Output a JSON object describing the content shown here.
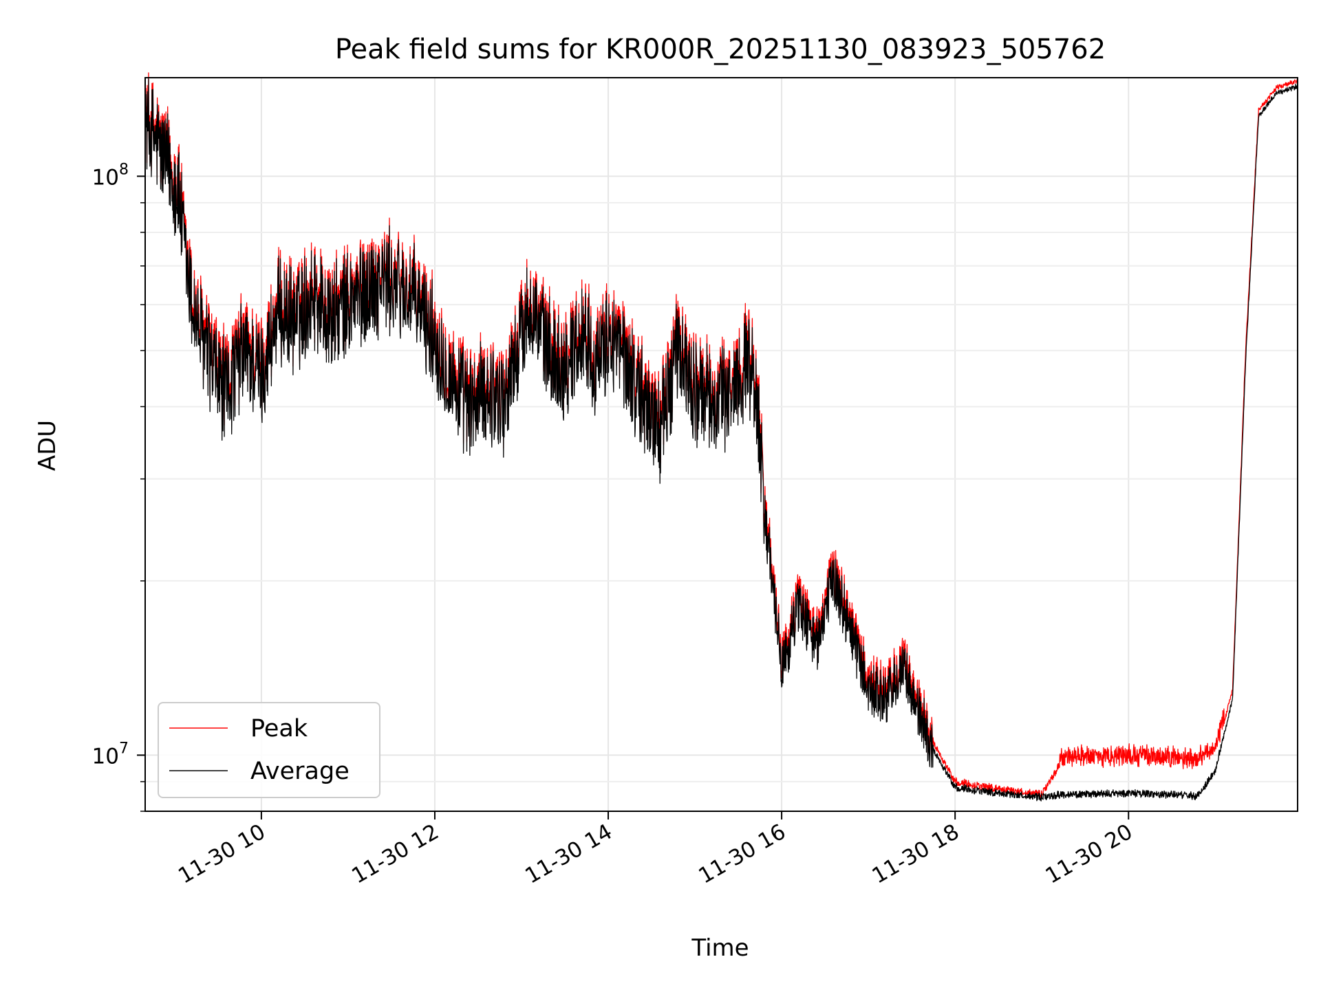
{
  "chart_data": {
    "type": "line",
    "title": "Peak field sums for KR000R_20251130_083923_505762",
    "xlabel": "Time",
    "ylabel": "ADU",
    "yscale": "log",
    "ylim": [
      8000000,
      148000000
    ],
    "xlim_hours": [
      8.66,
      21.95
    ],
    "grid": true,
    "x_ticks": [
      {
        "hour": 10,
        "label": "11-30 10"
      },
      {
        "hour": 12,
        "label": "11-30 12"
      },
      {
        "hour": 14,
        "label": "11-30 14"
      },
      {
        "hour": 16,
        "label": "11-30 16"
      },
      {
        "hour": 18,
        "label": "11-30 18"
      },
      {
        "hour": 20,
        "label": "11-30 20"
      }
    ],
    "y_ticks": [
      {
        "value": 10000000,
        "base": "10",
        "exp": "7"
      },
      {
        "value": 100000000,
        "base": "10",
        "exp": "8"
      }
    ],
    "legend": {
      "position": "lower-left",
      "entries": [
        "Peak",
        "Average"
      ]
    },
    "series": [
      {
        "name": "Peak",
        "color": "#ff0000",
        "hours": [
          8.66,
          8.75,
          8.85,
          8.95,
          9.05,
          9.1,
          9.2,
          9.3,
          9.45,
          9.6,
          9.8,
          10.0,
          10.2,
          10.4,
          10.6,
          10.8,
          11.0,
          11.2,
          11.4,
          11.6,
          11.8,
          12.0,
          12.2,
          12.4,
          12.6,
          12.8,
          13.0,
          13.1,
          13.3,
          13.5,
          13.7,
          13.9,
          14.0,
          14.2,
          14.4,
          14.6,
          14.8,
          15.0,
          15.2,
          15.4,
          15.6,
          15.7,
          15.8,
          15.9,
          16.0,
          16.2,
          16.4,
          16.6,
          16.8,
          17.0,
          17.2,
          17.4,
          17.6,
          17.75,
          18.0,
          18.5,
          19.0,
          19.2,
          19.5,
          20.0,
          20.5,
          20.8,
          21.0,
          21.2,
          21.35,
          21.5,
          21.7,
          21.95
        ],
        "values": [
          125000000,
          120000000,
          112000000,
          105000000,
          95000000,
          80000000,
          62000000,
          55000000,
          48000000,
          44000000,
          52000000,
          47000000,
          60000000,
          58000000,
          65000000,
          58000000,
          62000000,
          65000000,
          68000000,
          66000000,
          62000000,
          54000000,
          46000000,
          41000000,
          44000000,
          42000000,
          55000000,
          62000000,
          52000000,
          48000000,
          56000000,
          48000000,
          55000000,
          50000000,
          42000000,
          38000000,
          52000000,
          44000000,
          42000000,
          43000000,
          50000000,
          45000000,
          28000000,
          20000000,
          14500000,
          19000000,
          16000000,
          21000000,
          17000000,
          13500000,
          13000000,
          14500000,
          12000000,
          10500000,
          9000000,
          8750000,
          8550000,
          9600000,
          9650000,
          9650000,
          9600000,
          9550000,
          9900000,
          13000000,
          50000000,
          130000000,
          142000000,
          146000000
        ]
      },
      {
        "name": "Average",
        "color": "#000000",
        "hours": [
          8.66,
          8.75,
          8.85,
          8.95,
          9.05,
          9.1,
          9.2,
          9.3,
          9.45,
          9.6,
          9.8,
          10.0,
          10.2,
          10.4,
          10.6,
          10.8,
          11.0,
          11.2,
          11.4,
          11.6,
          11.8,
          12.0,
          12.2,
          12.4,
          12.6,
          12.8,
          13.0,
          13.1,
          13.3,
          13.5,
          13.7,
          13.9,
          14.0,
          14.2,
          14.4,
          14.6,
          14.8,
          15.0,
          15.2,
          15.4,
          15.6,
          15.7,
          15.8,
          15.9,
          16.0,
          16.2,
          16.4,
          16.6,
          16.8,
          17.0,
          17.2,
          17.4,
          17.6,
          17.75,
          18.0,
          18.5,
          19.0,
          19.2,
          19.5,
          20.0,
          20.5,
          20.8,
          21.0,
          21.2,
          21.35,
          21.5,
          21.7,
          21.95
        ],
        "values": [
          122000000,
          117000000,
          109000000,
          102000000,
          92000000,
          77000000,
          60000000,
          53000000,
          46000000,
          42000000,
          50000000,
          45000000,
          58000000,
          56000000,
          63000000,
          56000000,
          60000000,
          63000000,
          66000000,
          64000000,
          60000000,
          52000000,
          44000000,
          39500000,
          42500000,
          40500000,
          53000000,
          60000000,
          50000000,
          46000000,
          54000000,
          46000000,
          53000000,
          48000000,
          40500000,
          36500000,
          50000000,
          42500000,
          40500000,
          41500000,
          48000000,
          43500000,
          27000000,
          19300000,
          14000000,
          18300000,
          15400000,
          20300000,
          16400000,
          13000000,
          12500000,
          14000000,
          11600000,
          10200000,
          8800000,
          8600000,
          8450000,
          8550000,
          8550000,
          8600000,
          8550000,
          8500000,
          9400000,
          12500000,
          48000000,
          127000000,
          139000000,
          143000000
        ]
      }
    ]
  }
}
